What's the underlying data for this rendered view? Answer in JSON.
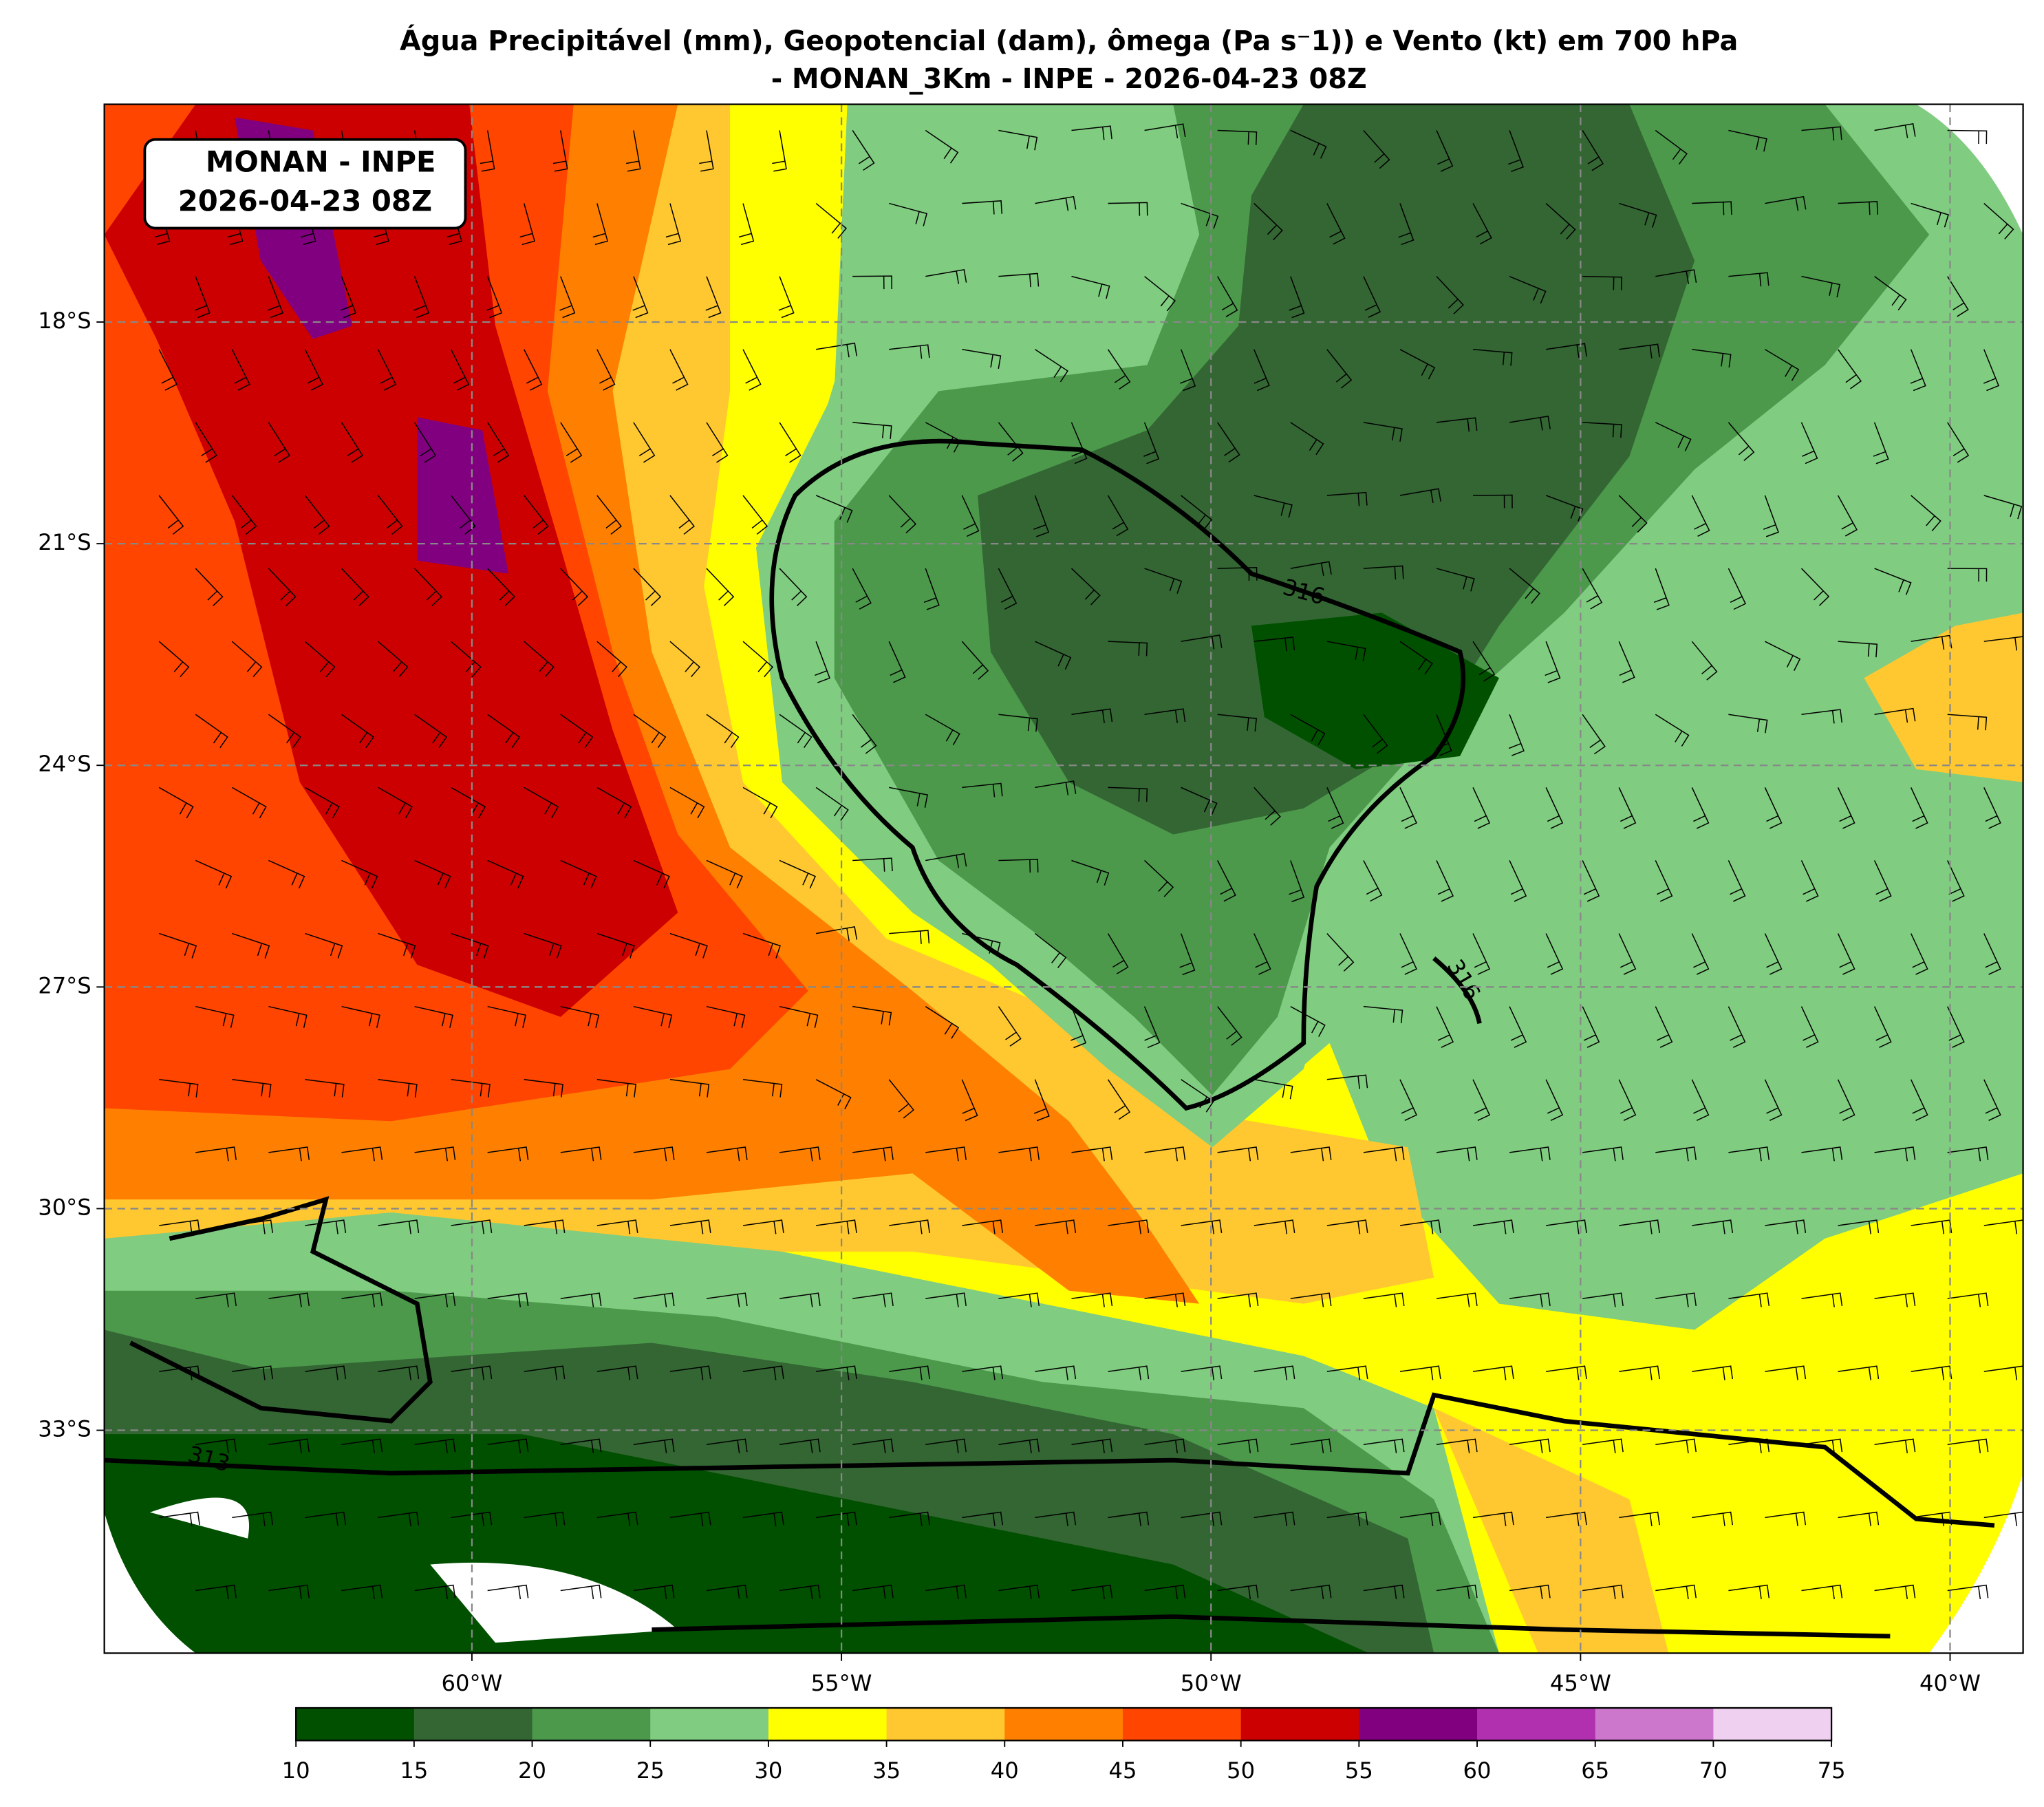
{
  "title": "Água Precipitável (mm), Geopotencial (dam), ômega (Pa s⁻1)) e Vento (kt) em 700 hPa",
  "subtitle": "- MONAN_3Km - INPE - 2026-04-23 08Z",
  "annotation": [
    "MONAN - INPE",
    "2026-04-23 08Z"
  ],
  "map": {
    "lon_ticks": [
      {
        "value": -60,
        "label": "60°W"
      },
      {
        "value": -55,
        "label": "55°W"
      },
      {
        "value": -50,
        "label": "50°W"
      },
      {
        "value": -45,
        "label": "45°W"
      },
      {
        "value": -40,
        "label": "40°W"
      }
    ],
    "lat_ticks": [
      {
        "value": -18,
        "label": "18°S"
      },
      {
        "value": -21,
        "label": "21°S"
      },
      {
        "value": -24,
        "label": "24°S"
      },
      {
        "value": -27,
        "label": "27°S"
      },
      {
        "value": -30,
        "label": "30°S"
      },
      {
        "value": -33,
        "label": "33°S"
      }
    ],
    "contour_labels": [
      "316",
      "316",
      "313"
    ]
  },
  "colorbar": {
    "levels": [
      10,
      15,
      20,
      25,
      30,
      35,
      40,
      45,
      50,
      55,
      60,
      65,
      70,
      75
    ],
    "colors": [
      "#005000",
      "#336633",
      "#4c994c",
      "#80cc80",
      "#ffff00",
      "#ffc830",
      "#ff8000",
      "#ff4500",
      "#cc0000",
      "#800080",
      "#b030b0",
      "#cc77cc",
      "#f0d0f0"
    ]
  }
}
